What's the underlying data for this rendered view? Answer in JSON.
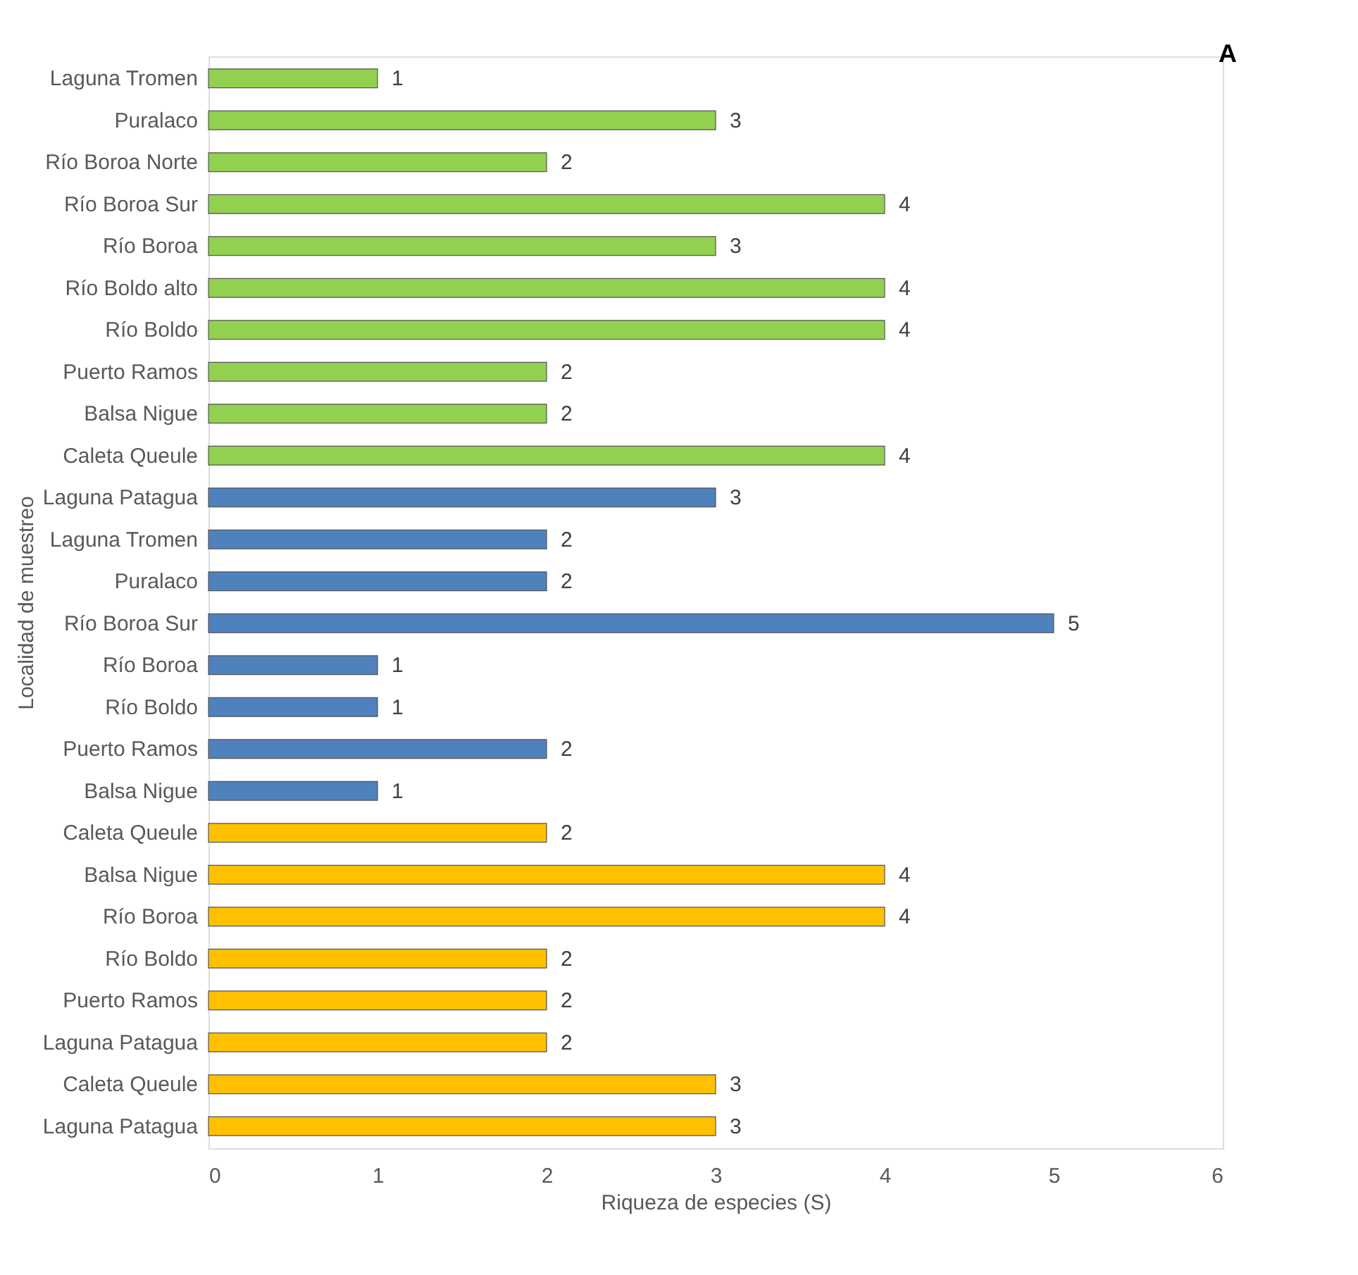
{
  "chart_data": {
    "type": "bar",
    "orientation": "horizontal",
    "xlabel": "Riqueza de especies (S)",
    "ylabel": "Localidad de muestreo",
    "categories": [
      "Laguna Tromen",
      "Puralaco",
      "Río Boroa Norte",
      "Río Boroa Sur",
      "Río Boroa",
      "Río Boldo alto",
      "Río Boldo",
      "Puerto Ramos",
      "Balsa Nigue",
      "Caleta Queule",
      "Laguna Patagua",
      "Laguna Tromen",
      "Puralaco",
      "Río Boroa Sur",
      "Río Boroa",
      "Río Boldo",
      "Puerto Ramos",
      "Balsa Nigue",
      "Caleta Queule",
      "Balsa Nigue",
      "Río Boroa",
      "Río Boldo",
      "Puerto Ramos",
      "Laguna Patagua",
      "Caleta Queule",
      "Laguna Patagua"
    ],
    "values": [
      1,
      3,
      2,
      4,
      3,
      4,
      4,
      2,
      2,
      4,
      3,
      2,
      2,
      5,
      1,
      1,
      2,
      1,
      2,
      4,
      4,
      2,
      2,
      2,
      3,
      3
    ],
    "colors": [
      "#92d050",
      "#92d050",
      "#92d050",
      "#92d050",
      "#92d050",
      "#92d050",
      "#92d050",
      "#92d050",
      "#92d050",
      "#92d050",
      "#4f81bd",
      "#4f81bd",
      "#4f81bd",
      "#4f81bd",
      "#4f81bd",
      "#4f81bd",
      "#4f81bd",
      "#4f81bd",
      "#ffc000",
      "#ffc000",
      "#ffc000",
      "#ffc000",
      "#ffc000",
      "#ffc000",
      "#ffc000",
      "#ffc000"
    ],
    "xlim": [
      0,
      6
    ],
    "xticks": [
      0,
      1,
      2,
      3,
      4,
      5,
      6
    ],
    "grid": false,
    "data_labels": true,
    "annotations": [
      "A"
    ]
  }
}
